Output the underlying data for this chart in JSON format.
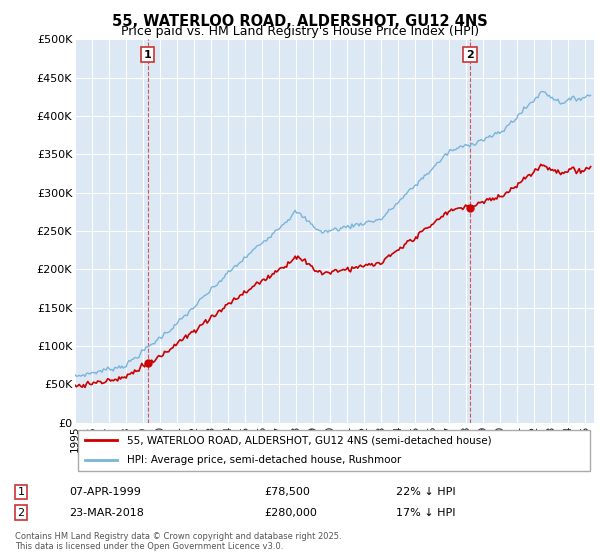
{
  "title": "55, WATERLOO ROAD, ALDERSHOT, GU12 4NS",
  "subtitle": "Price paid vs. HM Land Registry's House Price Index (HPI)",
  "ylabel_ticks": [
    "£0",
    "£50K",
    "£100K",
    "£150K",
    "£200K",
    "£250K",
    "£300K",
    "£350K",
    "£400K",
    "£450K",
    "£500K"
  ],
  "ytick_values": [
    0,
    50000,
    100000,
    150000,
    200000,
    250000,
    300000,
    350000,
    400000,
    450000,
    500000
  ],
  "ylim": [
    0,
    500000
  ],
  "xlim_start": 1995.0,
  "xlim_end": 2025.5,
  "hpi_color": "#7ab4d8",
  "price_color": "#cc0000",
  "marker1_year": 1999.27,
  "marker1_value": 78500,
  "marker2_year": 2018.22,
  "marker2_value": 280000,
  "legend_line1": "55, WATERLOO ROAD, ALDERSHOT, GU12 4NS (semi-detached house)",
  "legend_line2": "HPI: Average price, semi-detached house, Rushmoor",
  "table_row1": [
    "1",
    "07-APR-1999",
    "£78,500",
    "22% ↓ HPI"
  ],
  "table_row2": [
    "2",
    "23-MAR-2018",
    "£280,000",
    "17% ↓ HPI"
  ],
  "footer": "Contains HM Land Registry data © Crown copyright and database right 2025.\nThis data is licensed under the Open Government Licence v3.0.",
  "background_color": "#ffffff",
  "plot_bg_color": "#dce9f5",
  "grid_color": "#ffffff",
  "title_fontsize": 10.5,
  "subtitle_fontsize": 9
}
